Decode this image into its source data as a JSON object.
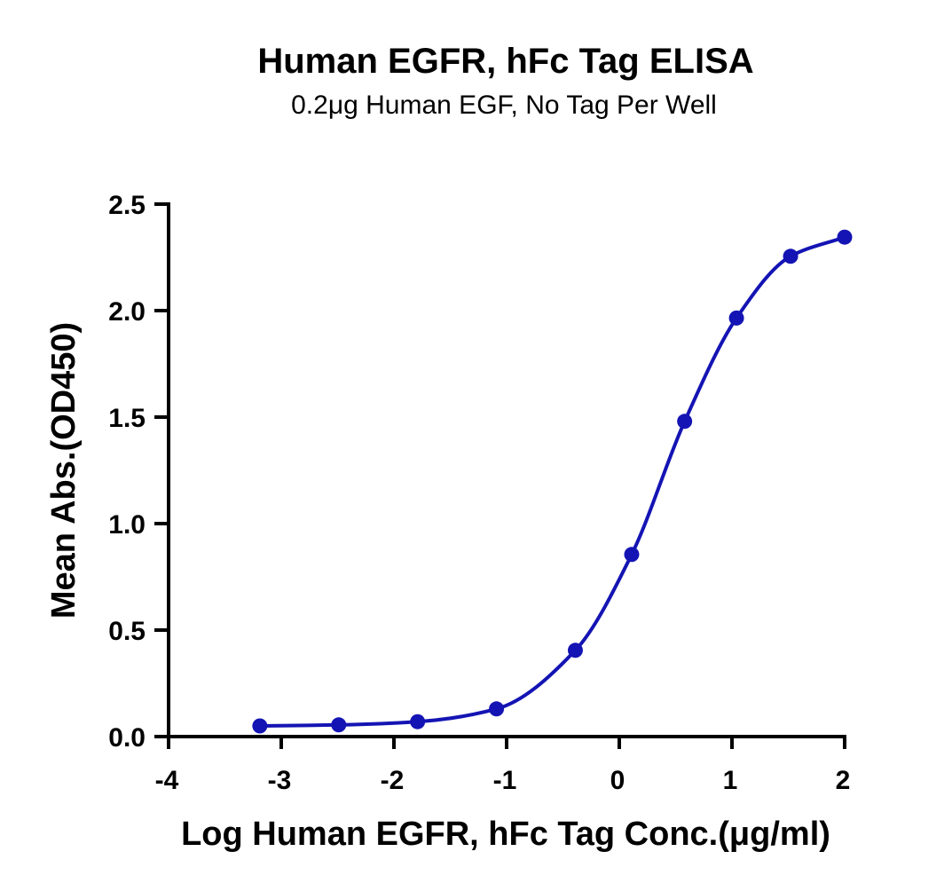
{
  "chart_data": {
    "type": "scatter",
    "title": "Human EGFR, hFc Tag ELISA",
    "subtitle": "0.2μg Human EGF, No Tag Per Well",
    "xlabel": "Log Human EGFR, hFc Tag Conc.(μg/ml)",
    "ylabel": "Mean Abs.(OD450)",
    "xlim": [
      -4,
      2
    ],
    "ylim": [
      0,
      2.5
    ],
    "x_ticks": [
      "-4",
      "-3",
      "-2",
      "-1",
      "0",
      "1",
      "2"
    ],
    "y_ticks": [
      "0.0",
      "0.5",
      "1.0",
      "1.5",
      "2.0",
      "2.5"
    ],
    "grid": false,
    "series": [
      {
        "x": [
          -3.19,
          -2.49,
          -1.79,
          -1.09,
          -0.39,
          0.11,
          0.58,
          1.04,
          1.52,
          2.0
        ],
        "y": [
          0.05,
          0.055,
          0.07,
          0.13,
          0.405,
          0.855,
          1.48,
          1.965,
          2.255,
          2.345
        ],
        "fit": "sigmoidal",
        "color": "#1414b4"
      }
    ]
  }
}
